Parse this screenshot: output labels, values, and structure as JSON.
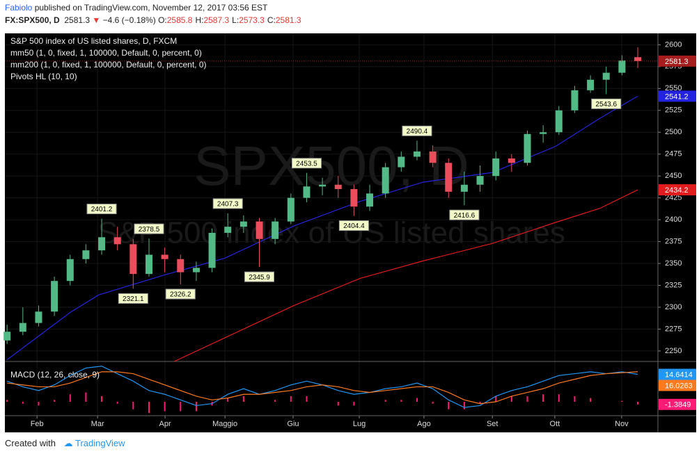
{
  "header": {
    "author": "Fabiolo",
    "published": "published on TradingView.com, November 12, 2017 03:56 EST",
    "symbol": "FX:SPX500, D",
    "last": "2581.3",
    "change": "−4.6 (−0.18%)",
    "ohlc": [
      {
        "key": "O:",
        "value": "2585.8"
      },
      {
        "key": "H:",
        "value": "2587.3"
      },
      {
        "key": "L:",
        "value": "2573.3"
      },
      {
        "key": "C:",
        "value": "2581.3"
      }
    ]
  },
  "footer": {
    "text": "Created with",
    "brand": "TradingView"
  },
  "chart_data": {
    "type": "candlestick",
    "title": "S&P 500 index of US listed shares, D, FXCM",
    "watermark": [
      "SPX500, D",
      "S&P 500 index of US listed shares"
    ],
    "x": [
      0,
      5,
      10,
      15,
      20,
      25,
      30,
      35,
      40,
      45,
      50,
      55,
      60,
      65,
      70,
      75,
      80,
      85,
      90,
      95,
      100,
      105,
      110,
      115,
      120,
      125,
      130,
      135,
      140,
      145,
      150,
      155,
      160,
      165,
      170,
      175,
      180,
      185,
      190,
      195,
      200
    ],
    "open": [
      2262,
      2272,
      2282,
      2295,
      2330,
      2355,
      2365,
      2380,
      2372,
      2338,
      2360,
      2355,
      2340,
      2345,
      2385,
      2392,
      2398,
      2378,
      2398,
      2425,
      2438,
      2440,
      2435,
      2415,
      2430,
      2460,
      2472,
      2478,
      2465,
      2432,
      2440,
      2450,
      2470,
      2465,
      2498,
      2500,
      2525,
      2548,
      2560,
      2568,
      2585.8
    ],
    "high": [
      2280,
      2300,
      2302,
      2335,
      2360,
      2372,
      2401.2,
      2392,
      2378,
      2378.5,
      2368,
      2360,
      2352,
      2390,
      2407.3,
      2405,
      2402,
      2402,
      2430,
      2453.5,
      2448,
      2450,
      2440,
      2440,
      2465,
      2478,
      2490.4,
      2485,
      2470,
      2455,
      2462,
      2478,
      2475,
      2502,
      2508,
      2530,
      2553,
      2565,
      2575,
      2588,
      2597
    ],
    "low": [
      2258,
      2268,
      2278,
      2290,
      2325,
      2350,
      2360,
      2365,
      2321.1,
      2335,
      2340,
      2326.2,
      2330,
      2340,
      2380,
      2385,
      2345.9,
      2372,
      2395,
      2420,
      2428,
      2425,
      2404.4,
      2410,
      2425,
      2455,
      2468,
      2460,
      2425,
      2416.6,
      2432,
      2445,
      2455,
      2462,
      2488,
      2497,
      2522,
      2545,
      2543.6,
      2565,
      2573.3
    ],
    "close": [
      2272,
      2282,
      2295,
      2330,
      2355,
      2365,
      2380,
      2372,
      2338,
      2360,
      2355,
      2340,
      2345,
      2385,
      2392,
      2398,
      2378,
      2398,
      2425,
      2438,
      2440,
      2435,
      2415,
      2430,
      2460,
      2472,
      2478,
      2465,
      2432,
      2440,
      2450,
      2470,
      2465,
      2498,
      2500,
      2525,
      2548,
      2560,
      2568,
      2582,
      2581.3
    ],
    "up_color": "#53b987",
    "down_color": "#eb4d5c",
    "last_color": "#a61d1d",
    "xlim": [
      -0.7,
      206.4
    ],
    "xticks": [
      {
        "value": 9.5,
        "label": "Feb"
      },
      {
        "value": 28.7,
        "label": "Mar"
      },
      {
        "value": 50.1,
        "label": "Apr"
      },
      {
        "value": 69.1,
        "label": "Maggio"
      },
      {
        "value": 90.7,
        "label": "Giu"
      },
      {
        "value": 111.7,
        "label": "Lug"
      },
      {
        "value": 132.2,
        "label": "Ago"
      },
      {
        "value": 153.9,
        "label": "Set"
      },
      {
        "value": 173.7,
        "label": "Ott"
      },
      {
        "value": 194.9,
        "label": "Nov"
      }
    ],
    "ylim": [
      2238,
      2613
    ],
    "yticks": [
      2250,
      2275,
      2300,
      2325,
      2350,
      2375,
      2400,
      2425,
      2450,
      2475,
      2500,
      2525,
      2550,
      2575,
      2600
    ],
    "grid": true,
    "lines": [
      {
        "name": "mm50 (1, 0, fixed, 1, 100000, Default, 0, percent, 0)",
        "color": "#2424e0",
        "x": [
          0,
          20,
          29,
          50,
          69,
          91,
          112,
          132,
          154,
          174,
          188,
          200
        ],
        "values": [
          2240,
          2294,
          2314,
          2337,
          2356,
          2393,
          2421,
          2443,
          2454,
          2484,
          2516,
          2541.2
        ]
      },
      {
        "name": "mm200 (1, 0, fixed, 1, 100000, Default, 0, percent, 0)",
        "color": "#e01c1c",
        "x": [
          53,
          91,
          112,
          132,
          154,
          174,
          188,
          200
        ],
        "values": [
          2238,
          2302,
          2333,
          2353,
          2373,
          2397,
          2413,
          2434.2
        ]
      }
    ],
    "pivots": {
      "name": "Pivots HL (10, 10)",
      "points": [
        {
          "x": 30,
          "value": 2401.2
        },
        {
          "x": 40,
          "value": 2321.1
        },
        {
          "x": 45,
          "value": 2378.5
        },
        {
          "x": 55,
          "value": 2326.2
        },
        {
          "x": 70,
          "value": 2407.3
        },
        {
          "x": 80,
          "value": 2345.9
        },
        {
          "x": 95,
          "value": 2453.5
        },
        {
          "x": 110,
          "value": 2404.4
        },
        {
          "x": 130,
          "value": 2490.4
        },
        {
          "x": 145,
          "value": 2416.6
        },
        {
          "x": 190,
          "value": 2543.6
        }
      ]
    },
    "macd": {
      "name": "MACD (12, 26, close, 9)",
      "ylim": [
        -7.4,
        21.5
      ],
      "series": [
        {
          "color": "#2196f3",
          "values": [
            11,
            8,
            6,
            9,
            14,
            18,
            19,
            15,
            11,
            6,
            4,
            1,
            -2,
            -1,
            4,
            7,
            4,
            6,
            9,
            11,
            9,
            6,
            4,
            5,
            7,
            8,
            10,
            7,
            1,
            -3,
            -2,
            3,
            6,
            8,
            11,
            14,
            15,
            16,
            15,
            16,
            14.6414
          ]
        },
        {
          "color": "#ff7a1f",
          "values": [
            10,
            9,
            8,
            8,
            10,
            13,
            16,
            16,
            15,
            12,
            9,
            6,
            3,
            1,
            2,
            4,
            4,
            5,
            6,
            8,
            9,
            8,
            6,
            5,
            6,
            7,
            8,
            8,
            5,
            1,
            -1,
            0,
            3,
            5,
            7,
            10,
            12,
            14,
            15,
            15.5,
            16.0263
          ]
        }
      ],
      "histogram": {
        "color": "#ff1a75",
        "values": [
          1,
          -1,
          -2,
          1,
          4,
          5,
          3,
          -1,
          -4,
          -6,
          -5,
          -5,
          -5,
          -2,
          2,
          3,
          0,
          1,
          3,
          3,
          0,
          -2,
          -2,
          0,
          1,
          1,
          2,
          -1,
          -4,
          -4,
          -1,
          3,
          3,
          3,
          4,
          4,
          3,
          2,
          0,
          0.5,
          -1.3849
        ]
      }
    }
  }
}
